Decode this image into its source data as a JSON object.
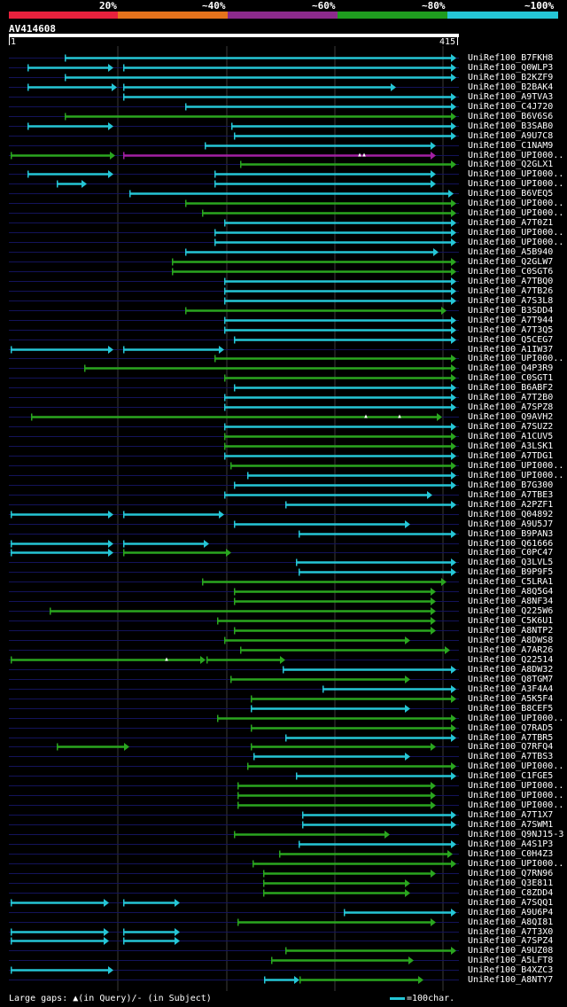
{
  "header": {
    "scale_labels": [
      "20%",
      "~40%",
      "~60%",
      "~80%",
      "~100%"
    ],
    "scale_colors": [
      "#e8213d",
      "#e6731c",
      "#8c2a8c",
      "#1f9c1f",
      "#25c6d6"
    ],
    "query_id": "AV414608",
    "ruler_start": "1",
    "ruler_end": "415"
  },
  "query_length": 415,
  "colors": {
    "cyan": "#25c6d6",
    "green": "#2aa61f",
    "purple": "#a320a3",
    "track": "#13135a",
    "grid": "#3a3a3a"
  },
  "hits": [
    {
      "label": "UniRef100_B7FKH8",
      "segs": [
        [
          73,
          515,
          "c"
        ]
      ]
    },
    {
      "label": "UniRef100_Q0WLP3",
      "segs": [
        [
          31,
          128,
          "c"
        ],
        [
          139,
          515,
          "c"
        ]
      ]
    },
    {
      "label": "UniRef100_B2KZF9",
      "segs": [
        [
          73,
          515,
          "c"
        ]
      ]
    },
    {
      "label": "UniRef100_B2BAK4",
      "segs": [
        [
          31,
          132,
          "c"
        ],
        [
          139,
          447,
          "c"
        ]
      ]
    },
    {
      "label": "UniRef100_A9TVA3",
      "segs": [
        [
          139,
          515,
          "c"
        ]
      ]
    },
    {
      "label": "UniRef100_C4J720",
      "segs": [
        [
          209,
          515,
          "c"
        ]
      ]
    },
    {
      "label": "UniRef100_B6V6S6",
      "segs": [
        [
          73,
          515,
          "g"
        ]
      ]
    },
    {
      "label": "UniRef100_B3SAB0",
      "segs": [
        [
          31,
          128,
          "c"
        ],
        [
          261,
          515,
          "c"
        ]
      ]
    },
    {
      "label": "UniRef100_A9U7C8",
      "segs": [
        [
          264,
          515,
          "c"
        ]
      ]
    },
    {
      "label": "UniRef100_C1NAM9",
      "segs": [
        [
          231,
          492,
          "c"
        ]
      ]
    },
    {
      "label": "UniRef100_UPI000..",
      "segs": [
        [
          12,
          130,
          "g"
        ],
        [
          139,
          492,
          "p"
        ]
      ],
      "marks": [
        406,
        411
      ]
    },
    {
      "label": "UniRef100_Q2GLX1",
      "segs": [
        [
          271,
          515,
          "g"
        ]
      ]
    },
    {
      "label": "UniRef100_UPI000..",
      "segs": [
        [
          31,
          128,
          "c"
        ],
        [
          242,
          492,
          "c"
        ]
      ]
    },
    {
      "label": "UniRef100_UPI000..",
      "segs": [
        [
          64,
          98,
          "c"
        ],
        [
          242,
          492,
          "c"
        ]
      ]
    },
    {
      "label": "UniRef100_B6VEQ5",
      "segs": [
        [
          146,
          512,
          "c"
        ]
      ]
    },
    {
      "label": "UniRef100_UPI000..",
      "segs": [
        [
          209,
          515,
          "g"
        ]
      ]
    },
    {
      "label": "UniRef100_UPI000..",
      "segs": [
        [
          228,
          515,
          "g"
        ]
      ]
    },
    {
      "label": "UniRef100_A7T0Z1",
      "segs": [
        [
          253,
          515,
          "c"
        ]
      ]
    },
    {
      "label": "UniRef100_UPI000..",
      "segs": [
        [
          242,
          515,
          "c"
        ]
      ]
    },
    {
      "label": "UniRef100_UPI000..",
      "segs": [
        [
          242,
          515,
          "c"
        ]
      ]
    },
    {
      "label": "UniRef100_A5B940",
      "segs": [
        [
          209,
          495,
          "c"
        ]
      ]
    },
    {
      "label": "UniRef100_Q2GLW7",
      "segs": [
        [
          194,
          515,
          "g"
        ]
      ]
    },
    {
      "label": "UniRef100_C0SGT6",
      "segs": [
        [
          194,
          515,
          "g"
        ]
      ]
    },
    {
      "label": "UniRef100_A7TBQ0",
      "segs": [
        [
          253,
          515,
          "c"
        ]
      ]
    },
    {
      "label": "UniRef100_A7TB26",
      "segs": [
        [
          253,
          515,
          "c"
        ]
      ]
    },
    {
      "label": "UniRef100_A7S3L8",
      "segs": [
        [
          253,
          515,
          "c"
        ]
      ]
    },
    {
      "label": "UniRef100_B3SDD4",
      "segs": [
        [
          209,
          504,
          "g"
        ]
      ]
    },
    {
      "label": "UniRef100_A7T944",
      "segs": [
        [
          253,
          515,
          "c"
        ]
      ]
    },
    {
      "label": "UniRef100_A7T3Q5",
      "segs": [
        [
          253,
          515,
          "c"
        ]
      ]
    },
    {
      "label": "UniRef100_Q5CEG7",
      "segs": [
        [
          264,
          515,
          "c"
        ]
      ]
    },
    {
      "label": "UniRef100_A1IW37",
      "segs": [
        [
          12,
          128,
          "c"
        ],
        [
          139,
          253,
          "c"
        ]
      ]
    },
    {
      "label": "UniRef100_UPI000..",
      "segs": [
        [
          242,
          515,
          "g"
        ]
      ]
    },
    {
      "label": "UniRef100_Q4P3R9",
      "segs": [
        [
          95,
          515,
          "g"
        ]
      ]
    },
    {
      "label": "UniRef100_C0SGT1",
      "segs": [
        [
          253,
          515,
          "g"
        ]
      ]
    },
    {
      "label": "UniRef100_B6ABF2",
      "segs": [
        [
          264,
          515,
          "c"
        ]
      ]
    },
    {
      "label": "UniRef100_A7T2B0",
      "segs": [
        [
          253,
          515,
          "c"
        ]
      ]
    },
    {
      "label": "UniRef100_A7SPZ8",
      "segs": [
        [
          253,
          515,
          "c"
        ]
      ]
    },
    {
      "label": "UniRef100_Q9AVH2",
      "segs": [
        [
          35,
          499,
          "g"
        ]
      ],
      "marks": [
        413,
        451
      ]
    },
    {
      "label": "UniRef100_A7SUZ2",
      "segs": [
        [
          253,
          515,
          "c"
        ]
      ]
    },
    {
      "label": "UniRef100_A1CUV5",
      "segs": [
        [
          253,
          515,
          "g"
        ]
      ]
    },
    {
      "label": "UniRef100_A3LSK1",
      "segs": [
        [
          253,
          515,
          "g"
        ]
      ]
    },
    {
      "label": "UniRef100_A7TDG1",
      "segs": [
        [
          253,
          515,
          "c"
        ]
      ]
    },
    {
      "label": "UniRef100_UPI000..",
      "segs": [
        [
          260,
          515,
          "g"
        ]
      ]
    },
    {
      "label": "UniRef100_UPI000..",
      "segs": [
        [
          279,
          515,
          "c"
        ]
      ]
    },
    {
      "label": "UniRef100_B7G300",
      "segs": [
        [
          264,
          515,
          "c"
        ]
      ]
    },
    {
      "label": "UniRef100_A7TBE3",
      "segs": [
        [
          253,
          488,
          "c"
        ]
      ]
    },
    {
      "label": "UniRef100_A2PZF1",
      "segs": [
        [
          322,
          515,
          "c"
        ]
      ]
    },
    {
      "label": "UniRef100_Q04892",
      "segs": [
        [
          12,
          128,
          "c"
        ],
        [
          139,
          253,
          "c"
        ]
      ]
    },
    {
      "label": "UniRef100_A9U5J7",
      "segs": [
        [
          264,
          463,
          "c"
        ]
      ]
    },
    {
      "label": "UniRef100_B9PAN3",
      "segs": [
        [
          337,
          515,
          "c"
        ]
      ]
    },
    {
      "label": "UniRef100_Q61666",
      "segs": [
        [
          12,
          128,
          "c"
        ],
        [
          139,
          236,
          "c"
        ]
      ]
    },
    {
      "label": "UniRef100_C0PC47",
      "segs": [
        [
          12,
          128,
          "c"
        ],
        [
          139,
          261,
          "g"
        ]
      ]
    },
    {
      "label": "UniRef100_Q3LVL5",
      "segs": [
        [
          334,
          515,
          "c"
        ]
      ]
    },
    {
      "label": "UniRef100_B9P9F5",
      "segs": [
        [
          337,
          515,
          "c"
        ]
      ]
    },
    {
      "label": "UniRef100_C5LRA1",
      "segs": [
        [
          228,
          504,
          "g"
        ]
      ]
    },
    {
      "label": "UniRef100_A8Q5G4",
      "segs": [
        [
          264,
          492,
          "g"
        ]
      ]
    },
    {
      "label": "UniRef100_A8NF34",
      "segs": [
        [
          264,
          492,
          "g"
        ]
      ]
    },
    {
      "label": "UniRef100_Q225W6",
      "segs": [
        [
          56,
          492,
          "g"
        ]
      ]
    },
    {
      "label": "UniRef100_C5K6U1",
      "segs": [
        [
          245,
          492,
          "g"
        ]
      ]
    },
    {
      "label": "UniRef100_A8NTP2",
      "segs": [
        [
          264,
          492,
          "g"
        ]
      ]
    },
    {
      "label": "UniRef100_A8DWS8",
      "segs": [
        [
          253,
          463,
          "g"
        ]
      ]
    },
    {
      "label": "UniRef100_A7AR26",
      "segs": [
        [
          271,
          508,
          "g"
        ]
      ]
    },
    {
      "label": "UniRef100_Q22514",
      "segs": [
        [
          12,
          232,
          "g"
        ],
        [
          233,
          322,
          "g"
        ]
      ],
      "marks": [
        188
      ]
    },
    {
      "label": "UniRef100_A8DW32",
      "segs": [
        [
          319,
          515,
          "c"
        ]
      ]
    },
    {
      "label": "UniRef100_Q8TGM7",
      "segs": [
        [
          260,
          463,
          "g"
        ]
      ]
    },
    {
      "label": "UniRef100_A3F4A4",
      "segs": [
        [
          364,
          515,
          "c"
        ]
      ]
    },
    {
      "label": "UniRef100_A5K5F4",
      "segs": [
        [
          283,
          515,
          "g"
        ]
      ]
    },
    {
      "label": "UniRef100_B8CEF5",
      "segs": [
        [
          283,
          463,
          "c"
        ]
      ]
    },
    {
      "label": "UniRef100_UPI000..",
      "segs": [
        [
          245,
          515,
          "g"
        ]
      ]
    },
    {
      "label": "UniRef100_Q7RAD5",
      "segs": [
        [
          283,
          515,
          "g"
        ]
      ]
    },
    {
      "label": "UniRef100_A7TBR5",
      "segs": [
        [
          322,
          515,
          "c"
        ]
      ]
    },
    {
      "label": "UniRef100_Q7RFQ4",
      "segs": [
        [
          64,
          146,
          "g"
        ],
        [
          283,
          492,
          "g"
        ]
      ]
    },
    {
      "label": "UniRef100_A7TBS3",
      "segs": [
        [
          286,
          463,
          "c"
        ]
      ]
    },
    {
      "label": "UniRef100_UPI000..",
      "segs": [
        [
          279,
          515,
          "g"
        ]
      ]
    },
    {
      "label": "UniRef100_C1FGE5",
      "segs": [
        [
          334,
          515,
          "c"
        ]
      ]
    },
    {
      "label": "UniRef100_UPI000..",
      "segs": [
        [
          268,
          492,
          "g"
        ]
      ]
    },
    {
      "label": "UniRef100_UPI000..",
      "segs": [
        [
          268,
          492,
          "g"
        ]
      ]
    },
    {
      "label": "UniRef100_UPI000..",
      "segs": [
        [
          268,
          492,
          "g"
        ]
      ]
    },
    {
      "label": "UniRef100_A7T1X7",
      "segs": [
        [
          341,
          515,
          "c"
        ]
      ]
    },
    {
      "label": "UniRef100_A7SWM1",
      "segs": [
        [
          341,
          515,
          "c"
        ]
      ]
    },
    {
      "label": "UniRef100_Q9NJ15-3",
      "segs": [
        [
          264,
          440,
          "g"
        ]
      ]
    },
    {
      "label": "UniRef100_A4S1P3",
      "segs": [
        [
          337,
          515,
          "c"
        ]
      ]
    },
    {
      "label": "UniRef100_C0H4Z3",
      "segs": [
        [
          315,
          511,
          "g"
        ]
      ]
    },
    {
      "label": "UniRef100_UPI000..",
      "segs": [
        [
          285,
          515,
          "g"
        ]
      ]
    },
    {
      "label": "UniRef100_Q7RN96",
      "segs": [
        [
          297,
          492,
          "g"
        ]
      ]
    },
    {
      "label": "UniRef100_Q3E811",
      "segs": [
        [
          297,
          463,
          "g"
        ]
      ]
    },
    {
      "label": "UniRef100_C8ZDD4",
      "segs": [
        [
          297,
          463,
          "g"
        ]
      ]
    },
    {
      "label": "UniRef100_A7SQQ1",
      "segs": [
        [
          12,
          123,
          "c"
        ],
        [
          139,
          203,
          "c"
        ]
      ]
    },
    {
      "label": "UniRef100_A9U6P4",
      "segs": [
        [
          388,
          515,
          "c"
        ]
      ]
    },
    {
      "label": "UniRef100_A8QI81",
      "segs": [
        [
          268,
          492,
          "g"
        ]
      ]
    },
    {
      "label": "UniRef100_A7T3X0",
      "segs": [
        [
          12,
          123,
          "c"
        ],
        [
          139,
          203,
          "c"
        ]
      ]
    },
    {
      "label": "UniRef100_A7SPZ4",
      "segs": [
        [
          12,
          123,
          "c"
        ],
        [
          139,
          203,
          "c"
        ]
      ]
    },
    {
      "label": "UniRef100_A9UZ08",
      "segs": [
        [
          322,
          515,
          "g"
        ]
      ]
    },
    {
      "label": "UniRef100_A5LFT8",
      "segs": [
        [
          306,
          467,
          "g"
        ]
      ]
    },
    {
      "label": "UniRef100_B4XZC3",
      "segs": [
        [
          12,
          128,
          "c"
        ]
      ]
    },
    {
      "label": "UniRef100_A8NTY7",
      "segs": [
        [
          298,
          338,
          "c"
        ],
        [
          338,
          478,
          "g"
        ]
      ]
    }
  ],
  "footer": {
    "gaps_text": "Large gaps: ▲(in Query)/- (in Subject)",
    "legend_text": "=100char."
  }
}
